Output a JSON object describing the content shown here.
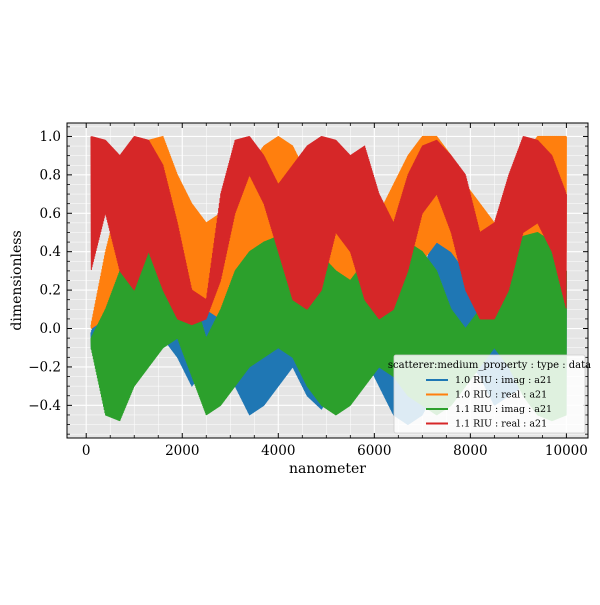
{
  "chart_data": {
    "type": "area",
    "title": "",
    "xlabel": "nanometer",
    "ylabel": "dimensionless",
    "xlim": [
      -400,
      10450
    ],
    "ylim": [
      -0.57,
      1.07
    ],
    "xticks": [
      0,
      2000,
      4000,
      6000,
      8000,
      10000
    ],
    "xtick_labels": [
      "0",
      "2000",
      "4000",
      "6000",
      "8000",
      "10000"
    ],
    "yticks": [
      -0.4,
      -0.2,
      0.0,
      0.2,
      0.4,
      0.6,
      0.8,
      1.0
    ],
    "ytick_labels": [
      "−0.4",
      "−0.2",
      "0.0",
      "0.2",
      "0.4",
      "0.6",
      "0.8",
      "1.0"
    ],
    "grid": true,
    "background": "#e5e5e5",
    "legend": {
      "title": "scatterer:medium_property : type : data",
      "placement": "lower-right"
    },
    "series": [
      {
        "name": "1.0 RIU : imag : a21",
        "color": "#1f77b4",
        "x": [
          100,
          400,
          700,
          1000,
          1300,
          1600,
          1900,
          2200,
          2500,
          2800,
          3100,
          3400,
          3700,
          4000,
          4300,
          4600,
          4900,
          5200,
          5500,
          5800,
          6100,
          6400,
          6700,
          7000,
          7300,
          7600,
          7900,
          8200,
          8500,
          8800,
          9100,
          9400,
          9700,
          10000
        ],
        "upper": [
          -0.02,
          0.2,
          0.3,
          0.18,
          0.08,
          0.05,
          0.12,
          0.4,
          0.48,
          0.5,
          0.5,
          0.48,
          0.45,
          0.4,
          0.3,
          0.12,
          0.1,
          0.2,
          0.35,
          0.45,
          0.4,
          0.25,
          0.2,
          0.3,
          0.5,
          0.5,
          0.45,
          0.4,
          0.2,
          0.1,
          0.1,
          0.25,
          0.4,
          0.3
        ],
        "lower": [
          -0.1,
          -0.35,
          -0.45,
          -0.2,
          -0.1,
          -0.05,
          -0.15,
          -0.3,
          -0.2,
          -0.15,
          -0.3,
          -0.45,
          -0.4,
          -0.3,
          -0.2,
          -0.35,
          -0.42,
          -0.3,
          -0.2,
          -0.15,
          -0.3,
          -0.45,
          -0.5,
          -0.45,
          -0.3,
          -0.2,
          -0.15,
          -0.25,
          -0.4,
          -0.35,
          -0.3,
          -0.2,
          -0.15,
          -0.45
        ]
      },
      {
        "name": "1.0 RIU : real : a21",
        "color": "#ff7f0e",
        "x": [
          100,
          400,
          700,
          1000,
          1300,
          1600,
          1900,
          2200,
          2500,
          2800,
          3100,
          3400,
          3700,
          4000,
          4300,
          4600,
          4900,
          5200,
          5500,
          5800,
          6100,
          6400,
          6700,
          7000,
          7300,
          7600,
          7900,
          8200,
          8500,
          8800,
          9100,
          9400,
          9700,
          10000
        ],
        "upper": [
          0.02,
          0.4,
          0.7,
          0.85,
          0.98,
          1.0,
          0.8,
          0.65,
          0.55,
          0.6,
          0.75,
          0.85,
          0.95,
          1.0,
          0.95,
          0.8,
          0.7,
          0.65,
          0.7,
          0.55,
          0.6,
          0.75,
          0.9,
          1.0,
          1.0,
          0.9,
          0.75,
          0.65,
          0.55,
          0.75,
          0.9,
          1.0,
          1.0,
          1.0
        ],
        "lower": [
          0.0,
          0.05,
          0.1,
          0.15,
          0.2,
          0.35,
          0.3,
          0.2,
          0.1,
          0.05,
          0.1,
          0.15,
          0.2,
          0.25,
          0.35,
          0.45,
          0.4,
          0.25,
          0.15,
          0.1,
          0.05,
          0.1,
          0.2,
          0.35,
          0.45,
          0.4,
          0.3,
          0.2,
          0.1,
          0.05,
          0.1,
          0.2,
          0.3,
          0.4
        ]
      },
      {
        "name": "1.1 RIU : imag : a21",
        "color": "#2ca02c",
        "x": [
          100,
          400,
          700,
          1000,
          1300,
          1600,
          1900,
          2200,
          2500,
          2800,
          3100,
          3400,
          3700,
          4000,
          4300,
          4600,
          4900,
          5200,
          5500,
          5800,
          6100,
          6400,
          6700,
          7000,
          7300,
          7600,
          7900,
          8200,
          8500,
          8800,
          9100,
          9400,
          9700,
          10000
        ],
        "upper": [
          -0.05,
          0.1,
          0.3,
          0.48,
          0.5,
          0.48,
          0.4,
          0.2,
          -0.05,
          0.1,
          0.3,
          0.4,
          0.45,
          0.48,
          0.5,
          0.45,
          0.38,
          0.3,
          0.25,
          0.35,
          0.48,
          0.5,
          0.45,
          0.4,
          0.3,
          0.1,
          0.0,
          0.1,
          0.25,
          0.4,
          0.48,
          0.5,
          0.45,
          0.3
        ],
        "lower": [
          -0.1,
          -0.45,
          -0.48,
          -0.3,
          -0.2,
          -0.1,
          -0.05,
          -0.25,
          -0.45,
          -0.4,
          -0.3,
          -0.2,
          -0.15,
          -0.1,
          -0.15,
          -0.3,
          -0.4,
          -0.45,
          -0.4,
          -0.3,
          -0.2,
          -0.25,
          -0.35,
          -0.4,
          -0.45,
          -0.4,
          -0.3,
          -0.2,
          -0.1,
          -0.2,
          -0.35,
          -0.45,
          -0.48,
          -0.45
        ]
      },
      {
        "name": "1.1 RIU : real : a21",
        "color": "#d62728",
        "x": [
          100,
          400,
          700,
          1000,
          1300,
          1600,
          1900,
          2200,
          2500,
          2800,
          3100,
          3400,
          3700,
          4000,
          4300,
          4600,
          4900,
          5200,
          5500,
          5800,
          6100,
          6400,
          6700,
          7000,
          7300,
          7600,
          7900,
          8200,
          8500,
          8800,
          9100,
          9400,
          9700,
          10000
        ],
        "upper": [
          1.0,
          0.98,
          0.9,
          1.0,
          0.98,
          0.85,
          0.55,
          0.2,
          0.15,
          0.7,
          0.98,
          1.0,
          0.9,
          0.75,
          0.85,
          0.95,
          1.0,
          0.98,
          0.9,
          0.95,
          0.7,
          0.55,
          0.8,
          0.95,
          0.98,
          0.9,
          0.8,
          0.5,
          0.55,
          0.8,
          1.0,
          0.98,
          0.9,
          0.7
        ],
        "lower": [
          0.3,
          0.6,
          0.3,
          0.2,
          0.4,
          0.2,
          0.05,
          0.02,
          0.05,
          0.25,
          0.6,
          0.8,
          0.65,
          0.4,
          0.15,
          0.1,
          0.2,
          0.5,
          0.4,
          0.15,
          0.05,
          0.1,
          0.3,
          0.6,
          0.7,
          0.5,
          0.2,
          0.05,
          0.05,
          0.2,
          0.5,
          0.55,
          0.4,
          0.1
        ]
      }
    ]
  }
}
